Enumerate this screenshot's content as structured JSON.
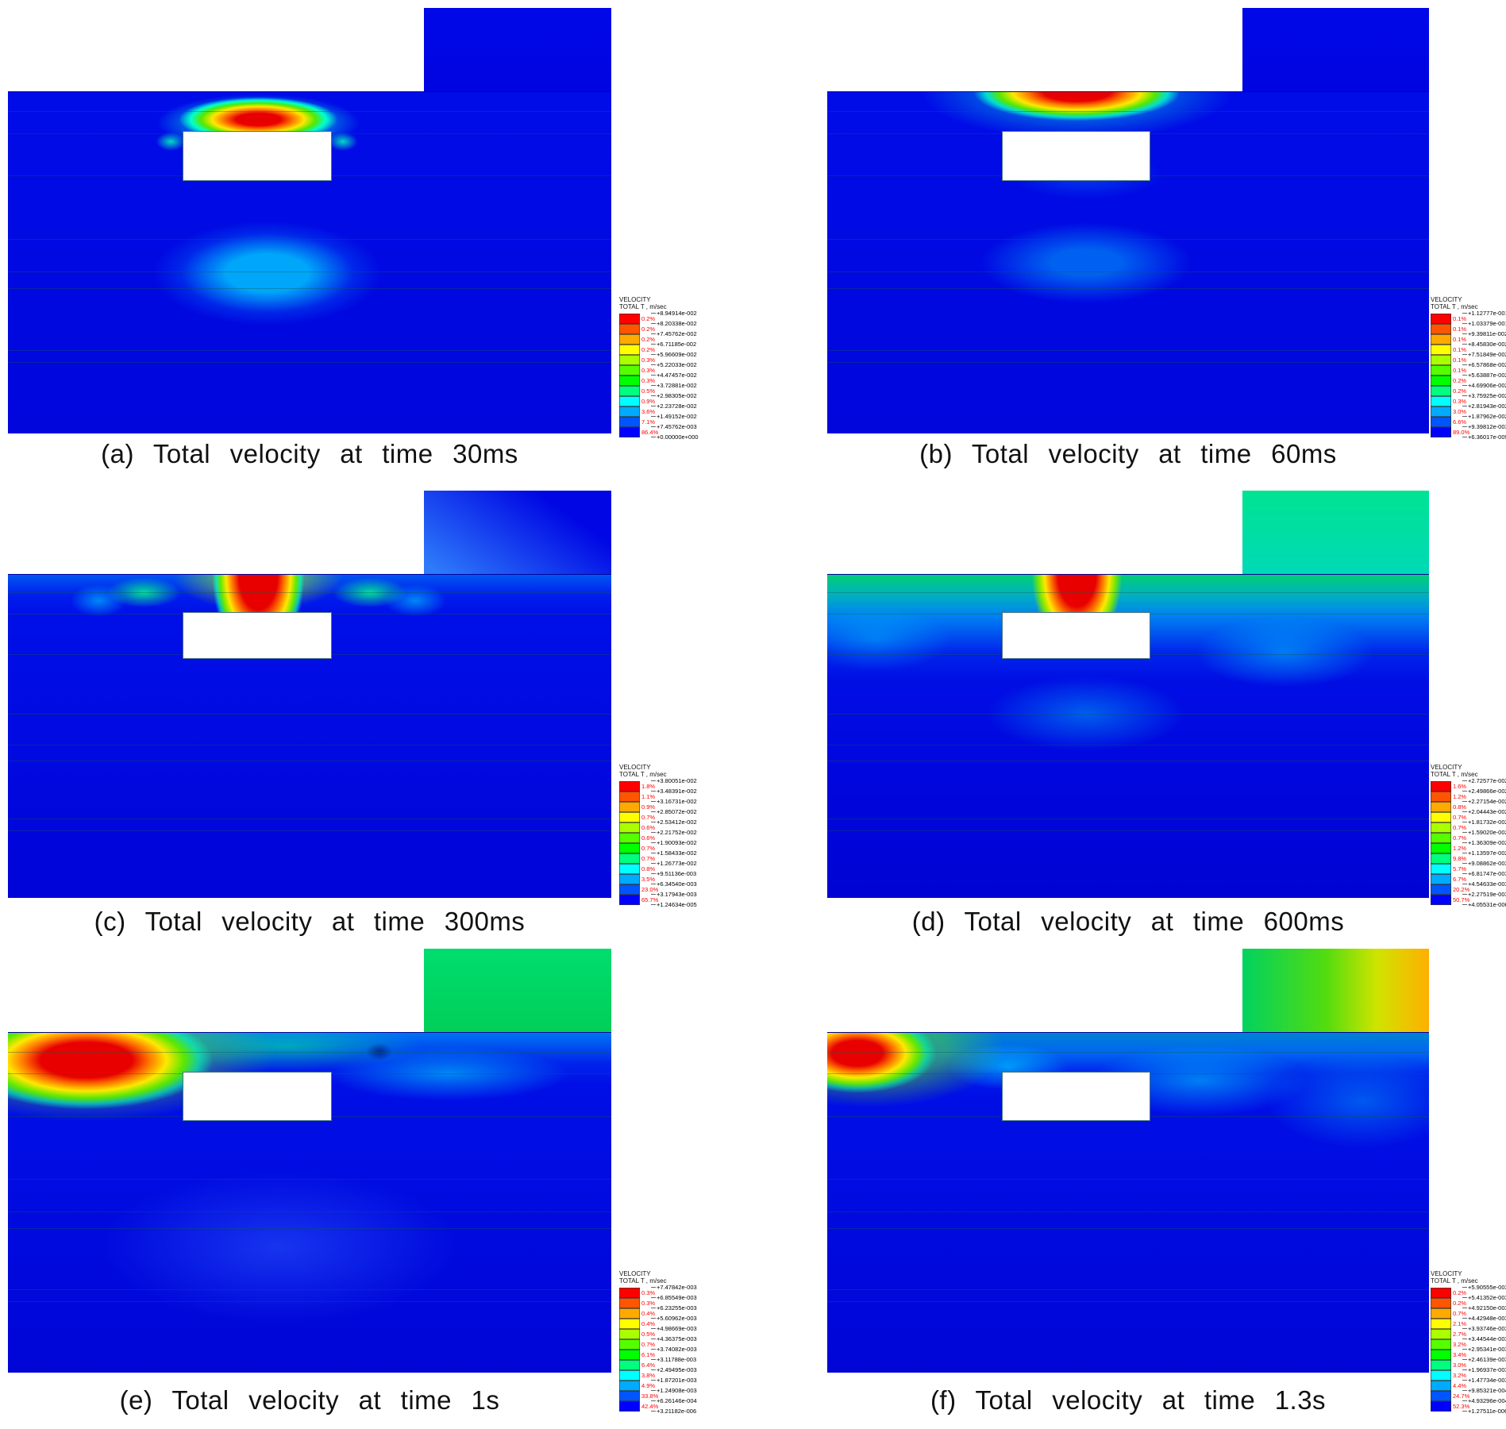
{
  "legend_header": {
    "line1": "VELOCITY",
    "line2": "TOTAL T , m/sec"
  },
  "palette": [
    "#ff0000",
    "#ff5500",
    "#ffaa00",
    "#ffff00",
    "#aaff00",
    "#55ff00",
    "#00ff00",
    "#00ff7f",
    "#00ffff",
    "#00aaff",
    "#0055ff",
    "#0000ff"
  ],
  "chart_data": [
    {
      "id": "a",
      "type": "heatmap",
      "title": "(a) Total velocity at time 30ms",
      "quantity": "Total velocity",
      "time": "30ms",
      "unit": "m/sec",
      "legend_title": "VELOCITY TOTAL T , m/sec",
      "contour_levels": [
        "+8.94914e-002",
        "+8.20338e-002",
        "+7.45762e-002",
        "+6.71185e-002",
        "+5.96609e-002",
        "+5.22033e-002",
        "+4.47457e-002",
        "+3.72881e-002",
        "+2.98305e-002",
        "+2.23728e-002",
        "+1.49152e-002",
        "+7.45762e-003",
        "+0.00000e+000"
      ],
      "band_percents": [
        "0.2%",
        "0.2%",
        "0.2%",
        "0.2%",
        "0.3%",
        "0.3%",
        "0.3%",
        "0.5%",
        "0.9%",
        "3.6%",
        "7.1%",
        "86.4%"
      ]
    },
    {
      "id": "b",
      "type": "heatmap",
      "title": "(b) Total velocity at time 60ms",
      "quantity": "Total velocity",
      "time": "60ms",
      "unit": "m/sec",
      "legend_title": "VELOCITY TOTAL T , m/sec",
      "contour_levels": [
        "+1.12777e-001",
        "+1.03379e-001",
        "+9.39811e-002",
        "+8.45830e-002",
        "+7.51849e-002",
        "+6.57868e-002",
        "+5.63887e-002",
        "+4.69906e-002",
        "+3.75925e-002",
        "+2.81943e-002",
        "+1.87962e-002",
        "+9.39812e-003",
        "+6.36017e-009"
      ],
      "band_percents": [
        "0.1%",
        "0.1%",
        "0.1%",
        "0.1%",
        "0.1%",
        "0.1%",
        "0.2%",
        "0.2%",
        "0.3%",
        "3.0%",
        "6.6%",
        "89.0%"
      ]
    },
    {
      "id": "c",
      "type": "heatmap",
      "title": "(c) Total velocity at time 300ms",
      "quantity": "Total velocity",
      "time": "300ms",
      "unit": "m/sec",
      "legend_title": "VELOCITY TOTAL T , m/sec",
      "contour_levels": [
        "+3.80051e-002",
        "+3.48391e-002",
        "+3.16731e-002",
        "+2.85072e-002",
        "+2.53412e-002",
        "+2.21752e-002",
        "+1.90093e-002",
        "+1.58433e-002",
        "+1.26773e-002",
        "+9.51136e-003",
        "+6.34540e-003",
        "+3.17943e-003",
        "+1.24634e-005"
      ],
      "band_percents": [
        "1.8%",
        "1.1%",
        "0.9%",
        "0.7%",
        "0.6%",
        "0.6%",
        "0.7%",
        "0.7%",
        "0.8%",
        "3.5%",
        "23.0%",
        "65.7%"
      ]
    },
    {
      "id": "d",
      "type": "heatmap",
      "title": "(d) Total velocity at time 600ms",
      "quantity": "Total velocity",
      "time": "600ms",
      "unit": "m/sec",
      "legend_title": "VELOCITY TOTAL T , m/sec",
      "contour_levels": [
        "+2.72577e-002",
        "+2.49866e-002",
        "+2.27154e-002",
        "+2.04443e-002",
        "+1.81732e-002",
        "+1.59020e-002",
        "+1.36309e-002",
        "+1.13597e-002",
        "+9.08862e-003",
        "+6.81747e-003",
        "+4.54633e-003",
        "+2.27519e-003",
        "+4.05531e-006"
      ],
      "band_percents": [
        "1.6%",
        "1.2%",
        "0.8%",
        "0.7%",
        "0.7%",
        "0.7%",
        "1.2%",
        "9.8%",
        "5.7%",
        "6.7%",
        "20.2%",
        "50.7%"
      ]
    },
    {
      "id": "e",
      "type": "heatmap",
      "title": "(e) Total velocity at time 1s",
      "quantity": "Total velocity",
      "time": "1s",
      "unit": "m/sec",
      "legend_title": "VELOCITY TOTAL T , m/sec",
      "contour_levels": [
        "+7.47842e-003",
        "+6.85549e-003",
        "+6.23255e-003",
        "+5.60962e-003",
        "+4.98669e-003",
        "+4.36375e-003",
        "+3.74082e-003",
        "+3.11788e-003",
        "+2.49495e-003",
        "+1.87201e-003",
        "+1.24908e-003",
        "+6.26146e-004",
        "+3.21182e-006"
      ],
      "band_percents": [
        "0.3%",
        "0.3%",
        "0.4%",
        "0.4%",
        "0.5%",
        "0.7%",
        "6.1%",
        "6.4%",
        "3.8%",
        "4.9%",
        "33.8%",
        "42.4%"
      ]
    },
    {
      "id": "f",
      "type": "heatmap",
      "title": "(f) Total velocity at time 1.3s",
      "quantity": "Total velocity",
      "time": "1.3s",
      "unit": "m/sec",
      "legend_title": "VELOCITY TOTAL T , m/sec",
      "contour_levels": [
        "+5.90555e-003",
        "+5.41352e-003",
        "+4.92150e-003",
        "+4.42948e-003",
        "+3.93746e-003",
        "+3.44544e-003",
        "+2.95341e-003",
        "+2.46139e-003",
        "+1.96937e-003",
        "+1.47734e-003",
        "+9.85321e-004",
        "+4.93296e-004",
        "+1.27511e-006"
      ],
      "band_percents": [
        "0.2%",
        "0.2%",
        "0.7%",
        "2.1%",
        "2.7%",
        "3.2%",
        "3.4%",
        "3.0%",
        "3.2%",
        "4.4%",
        "24.7%",
        "52.3%"
      ]
    }
  ]
}
